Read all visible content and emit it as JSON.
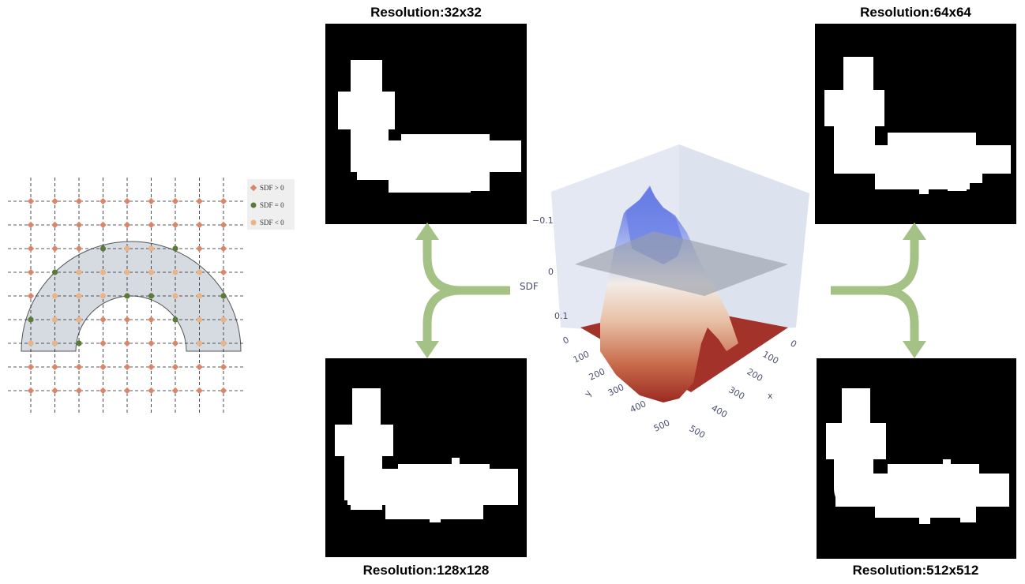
{
  "titles": {
    "res32": "Resolution:32x32",
    "res64": "Resolution:64x64",
    "res128": "Resolution:128x128",
    "res512": "Resolution:512x512"
  },
  "legend": {
    "pos": "SDF > 0",
    "zero": "SDF = 0",
    "neg": "SDF < 0"
  },
  "colors": {
    "sdf_pos": "#d9876b",
    "sdf_zero": "#5a7a3a",
    "sdf_neg": "#e8b48a",
    "shape_fill": "#d6dbe2",
    "arrow": "#a4c285",
    "panel_bg": "#000000",
    "mask": "#ffffff"
  },
  "plot3d": {
    "z_label": "SDF",
    "z_ticks": [
      "−0.1",
      "0",
      "0.1"
    ],
    "y_label": "y",
    "y_ticks": [
      "0",
      "100",
      "200",
      "300",
      "400",
      "500"
    ],
    "x_label": "x",
    "x_ticks": [
      "0",
      "100",
      "200",
      "300",
      "400",
      "500"
    ]
  }
}
